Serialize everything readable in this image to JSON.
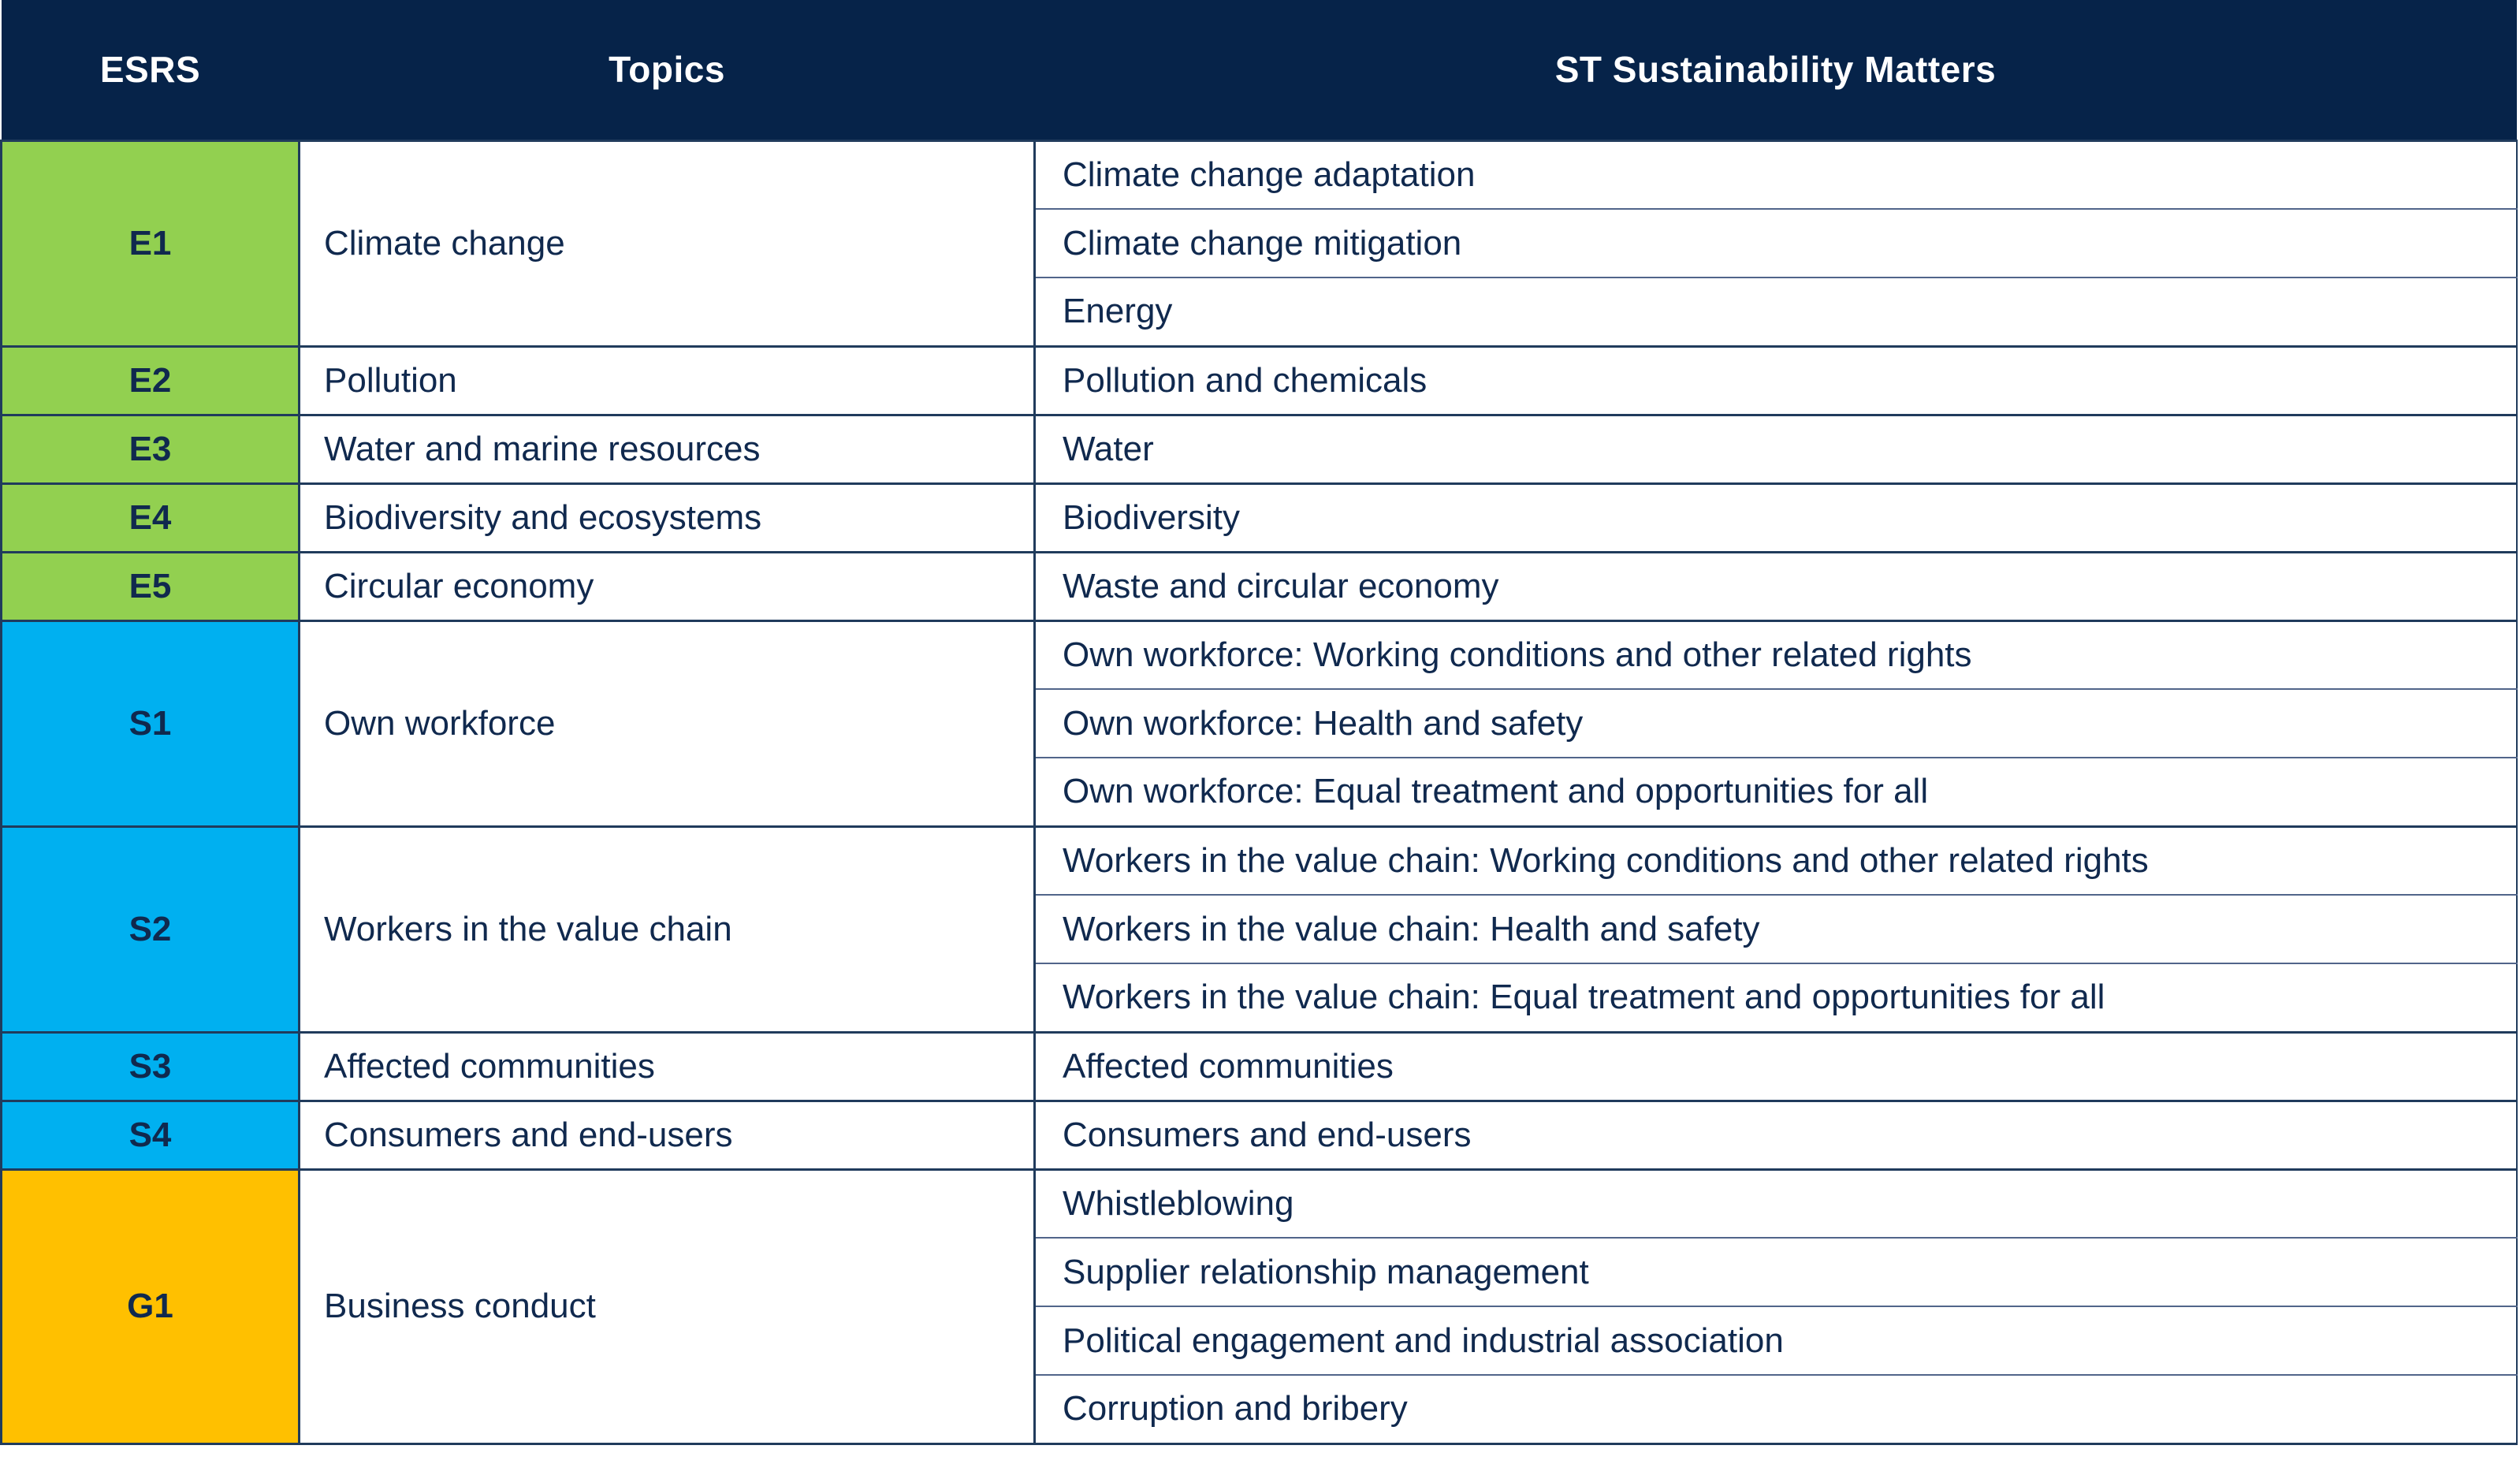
{
  "table": {
    "columns": [
      "ESRS",
      "Topics",
      "ST Sustainability Matters"
    ],
    "colors": {
      "header_bg": "#062349",
      "header_text": "#ffffff",
      "body_text": "#10294e",
      "environmental": "#92D050",
      "social": "#00B0F0",
      "governance": "#FFC000"
    },
    "groups": [
      {
        "code": "E1",
        "topic": "Climate change",
        "category": "environmental",
        "matters": [
          "Climate change adaptation",
          "Climate change mitigation",
          "Energy"
        ]
      },
      {
        "code": "E2",
        "topic": "Pollution",
        "category": "environmental",
        "matters": [
          "Pollution and chemicals"
        ]
      },
      {
        "code": "E3",
        "topic": "Water and marine resources",
        "category": "environmental",
        "matters": [
          "Water"
        ]
      },
      {
        "code": "E4",
        "topic": "Biodiversity and ecosystems",
        "category": "environmental",
        "matters": [
          "Biodiversity"
        ]
      },
      {
        "code": "E5",
        "topic": "Circular economy",
        "category": "environmental",
        "matters": [
          "Waste and circular economy"
        ]
      },
      {
        "code": "S1",
        "topic": "Own workforce",
        "category": "social",
        "matters": [
          "Own workforce: Working conditions and other related rights",
          "Own workforce: Health and safety",
          "Own workforce: Equal treatment and opportunities for all"
        ]
      },
      {
        "code": "S2",
        "topic": "Workers in the value chain",
        "category": "social",
        "matters": [
          "Workers in the value chain: Working conditions and other related rights",
          "Workers in the value chain: Health and safety",
          "Workers in the value chain: Equal treatment and opportunities for all"
        ]
      },
      {
        "code": "S3",
        "topic": "Affected communities",
        "category": "social",
        "matters": [
          "Affected communities"
        ]
      },
      {
        "code": "S4",
        "topic": "Consumers and end-users",
        "category": "social",
        "matters": [
          "Consumers and end-users"
        ]
      },
      {
        "code": "G1",
        "topic": "Business conduct",
        "category": "governance",
        "matters": [
          "Whistleblowing",
          "Supplier relationship management",
          "Political engagement and industrial association",
          "Corruption and bribery"
        ]
      }
    ]
  }
}
